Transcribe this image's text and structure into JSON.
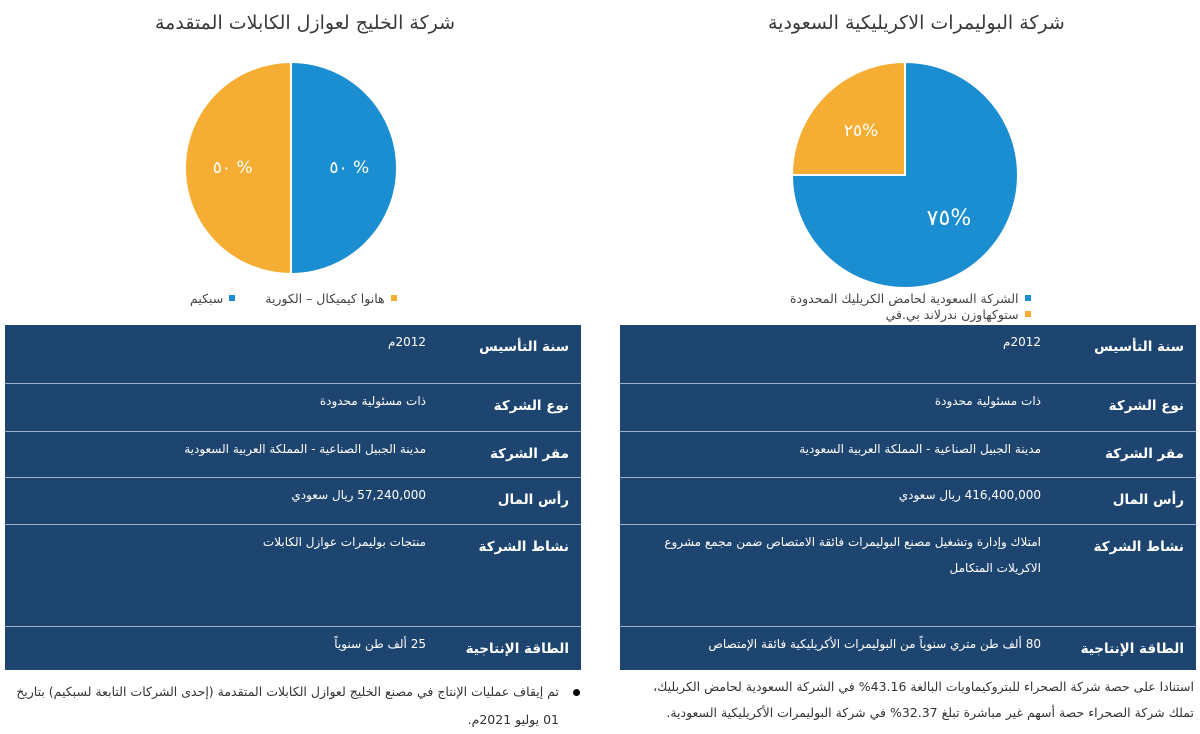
{
  "left": {
    "title": "شركة الخليج لعوازل الكابلات المتقدمة",
    "pie": [
      {
        "label": "سبكيم",
        "value": 50,
        "display": "٥٠ %",
        "color": "#1b8ed1"
      },
      {
        "label": "هانوا كيميكال – الكورية",
        "value": 50,
        "display": "٥٠ %",
        "color": "#f5ae33"
      }
    ],
    "rows": [
      {
        "key": "سنة التأسيس",
        "value": "2012م"
      },
      {
        "key": "نوع الشركة",
        "value": "ذات مسئولية محدودة"
      },
      {
        "key": "مقر الشركة",
        "value": "مدينة الجبيل الصناعية - المملكة العربية السعودية"
      },
      {
        "key": "رأس المال",
        "value": "57,240,000 ريال سعودي"
      },
      {
        "key": "نشاط الشركة",
        "value": "منتجات بوليمرات عوازل الكابلات"
      },
      {
        "key": "الطاقة الإنتاجية",
        "value": "25 ألف طن سنوياً"
      }
    ],
    "footnote": "تم إيقاف عمليات الإنتاج في مصنع الخليج لعوازل الكابلات المتقدمة (إحدى الشركات التابعة لسبكيم) بتاريخ 01 يوليو 2021م."
  },
  "right": {
    "title": "شركة البوليمرات الاكريليكية السعودية",
    "pie": [
      {
        "label": "الشركة السعودية لحامض الكريليك المحدودة",
        "value": 75,
        "display": "٧٥%",
        "color": "#1b8ed1"
      },
      {
        "label": "ستوكهاوزن ندرلاند بي.في",
        "value": 25,
        "display": "٢٥%",
        "color": "#f5ae33"
      }
    ],
    "rows": [
      {
        "key": "سنة التأسيس",
        "value": "2012م"
      },
      {
        "key": "نوع الشركة",
        "value": "ذات مسئولية محدودة"
      },
      {
        "key": "مقر الشركة",
        "value": "مدينة الجبيل الصناعية - المملكة العربية السعودية"
      },
      {
        "key": "رأس المال",
        "value": "416,400,000 ريال سعودي"
      },
      {
        "key": "نشاط الشركة",
        "value": "امتلاك وإدارة وتشغيل مصنع البوليمرات فائقة الامتصاص ضمن مجمع مشروع الاكريلات المتكامل"
      },
      {
        "key": "الطاقة الإنتاجية",
        "value": "80  ألف طن متري سنوياً من البوليمرات الأكريليكية فائقة الإمتصاص"
      }
    ],
    "footnote": "استنادا على حصة شركة الصحراء للبتروكيماويات البالغة 43.16% في الشركة السعودية لحامض الكربليك، تملك شركة الصحراء حصة أسهم غير مباشرة تبلغ 32.37% في شركة البوليمرات الأكريليكية السعودية."
  }
}
